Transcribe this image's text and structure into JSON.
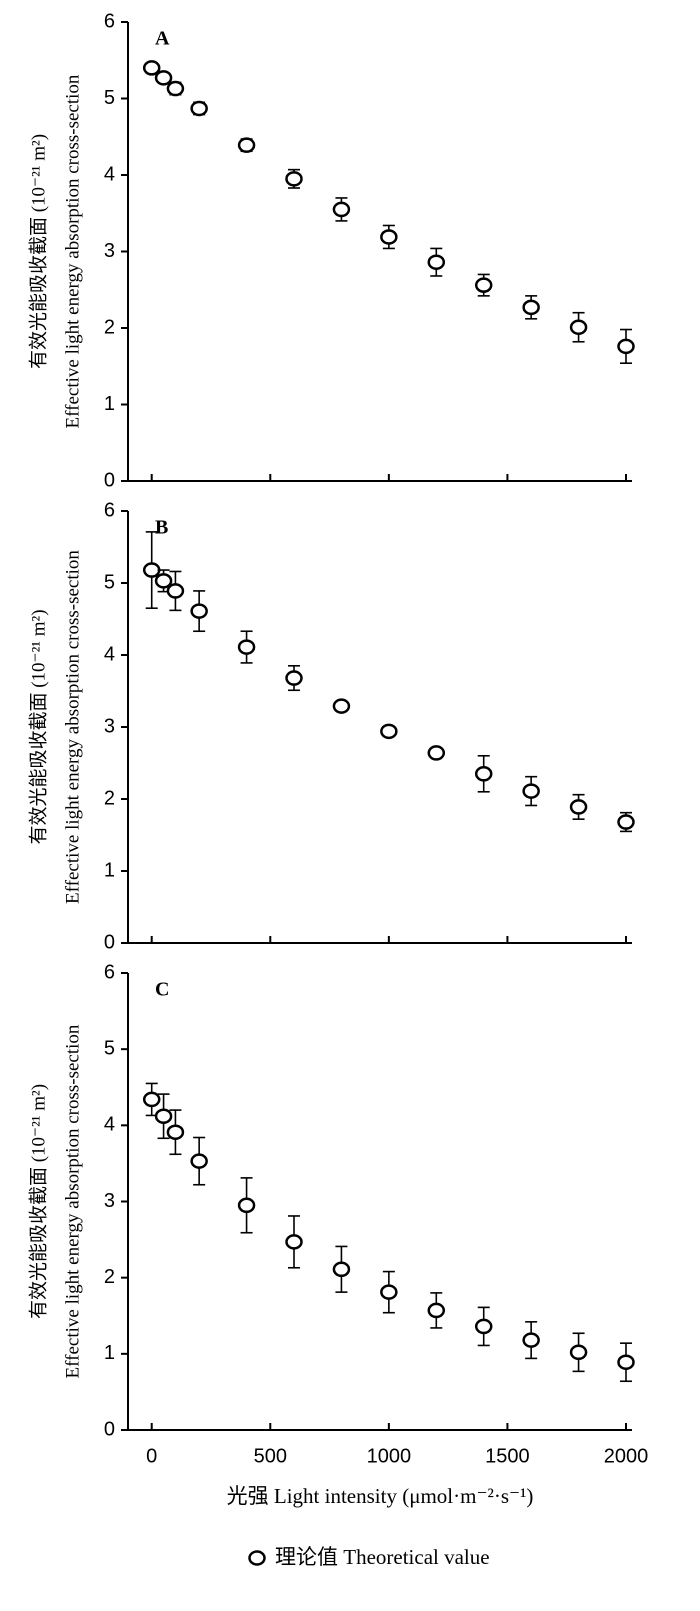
{
  "chart_data": [
    {
      "type": "scatter",
      "annotation": "A",
      "ylabel": [
        "有效光能吸收截面 (10⁻²¹ m²)",
        "Effective light energy absorption cross-section"
      ],
      "x": [
        0,
        50,
        100,
        200,
        400,
        600,
        800,
        1000,
        1200,
        1400,
        1600,
        1800,
        2000
      ],
      "series": [
        {
          "color": "#000000",
          "values": [
            5.4,
            5.27,
            5.13,
            4.87,
            4.39,
            3.95,
            3.55,
            3.19,
            2.86,
            2.56,
            2.27,
            2.01,
            1.76
          ],
          "errors": [
            0.05,
            0.06,
            0.08,
            0.08,
            0.08,
            0.12,
            0.15,
            0.15,
            0.18,
            0.14,
            0.15,
            0.19,
            0.22
          ]
        }
      ],
      "xlim": [
        -100,
        2000
      ],
      "xticks": [
        0,
        500,
        1000,
        1500,
        2000
      ],
      "show_xtick_labels": false,
      "ylim": [
        0,
        6
      ],
      "yticks": [
        0,
        1,
        2,
        3,
        4,
        5,
        6
      ]
    },
    {
      "type": "scatter",
      "annotation": "B",
      "ylabel": [
        "有效光能吸收截面 (10⁻²¹ m²)",
        "Effective light energy absorption cross-section"
      ],
      "x": [
        0,
        50,
        100,
        200,
        400,
        600,
        800,
        1000,
        1200,
        1400,
        1600,
        1800,
        2000
      ],
      "series": [
        {
          "color": "#000000",
          "values": [
            5.18,
            5.03,
            4.89,
            4.61,
            4.11,
            3.68,
            3.29,
            2.94,
            2.64,
            2.35,
            2.11,
            1.89,
            1.68
          ],
          "errors": [
            0.53,
            0.15,
            0.27,
            0.28,
            0.22,
            0.17,
            0.06,
            0.06,
            0.05,
            0.25,
            0.2,
            0.17,
            0.13
          ]
        }
      ],
      "xlim": [
        -100,
        2000
      ],
      "xticks": [
        0,
        500,
        1000,
        1500,
        2000
      ],
      "show_xtick_labels": false,
      "ylim": [
        0,
        6
      ],
      "yticks": [
        0,
        1,
        2,
        3,
        4,
        5,
        6
      ]
    },
    {
      "type": "scatter",
      "annotation": "C",
      "ylabel": [
        "有效光能吸收截面 (10⁻²¹ m²)",
        "Effective light energy absorption cross-section"
      ],
      "xlabel": "光强 Light intensity (μmol·m⁻²·s⁻¹)",
      "x": [
        0,
        50,
        100,
        200,
        400,
        600,
        800,
        1000,
        1200,
        1400,
        1600,
        1800,
        2000
      ],
      "series": [
        {
          "name": "理论值 Theoretical value",
          "color": "#000000",
          "values": [
            4.34,
            4.12,
            3.91,
            3.53,
            2.95,
            2.47,
            2.11,
            1.81,
            1.57,
            1.36,
            1.18,
            1.02,
            0.89
          ],
          "errors": [
            0.21,
            0.29,
            0.29,
            0.31,
            0.36,
            0.34,
            0.3,
            0.27,
            0.23,
            0.25,
            0.24,
            0.25,
            0.25
          ]
        }
      ],
      "xlim": [
        -100,
        2000
      ],
      "xticks": [
        0,
        500,
        1000,
        1500,
        2000
      ],
      "show_xtick_labels": true,
      "ylim": [
        0,
        6
      ],
      "yticks": [
        0,
        1,
        2,
        3,
        4,
        5,
        6
      ]
    }
  ]
}
